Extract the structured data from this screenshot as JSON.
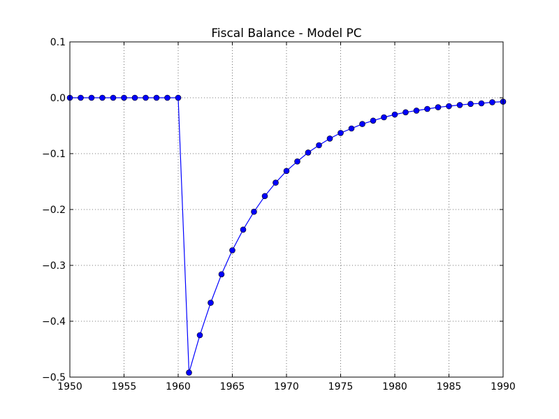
{
  "chart_data": {
    "type": "line",
    "title": "Fiscal Balance - Model PC",
    "xlabel": "",
    "ylabel": "",
    "xlim": [
      1950,
      1990
    ],
    "ylim": [
      -0.5,
      0.1
    ],
    "x_ticks": [
      1950,
      1955,
      1960,
      1965,
      1970,
      1975,
      1980,
      1985,
      1990
    ],
    "x_tick_labels": [
      "1950",
      "1955",
      "1960",
      "1965",
      "1970",
      "1975",
      "1980",
      "1985",
      "1990"
    ],
    "y_ticks": [
      0.1,
      0.0,
      -0.1,
      -0.2,
      -0.3,
      -0.4,
      -0.5
    ],
    "y_tick_labels": [
      "0.1",
      "0.0",
      "−0.1",
      "−0.2",
      "−0.3",
      "−0.4",
      "−0.5"
    ],
    "grid": true,
    "color": "#0000ff",
    "marker": "circle",
    "series": [
      {
        "x": [
          1950,
          1951,
          1952,
          1953,
          1954,
          1955,
          1956,
          1957,
          1958,
          1959,
          1960,
          1961,
          1962,
          1963,
          1964,
          1965,
          1966,
          1967,
          1968,
          1969,
          1970,
          1971,
          1972,
          1973,
          1974,
          1975,
          1976,
          1977,
          1978,
          1979,
          1980,
          1981,
          1982,
          1983,
          1984,
          1985,
          1986,
          1987,
          1988,
          1989,
          1990
        ],
        "values": [
          0,
          0,
          0,
          0,
          0,
          0,
          0,
          0,
          0,
          0,
          0,
          -0.492,
          -0.425,
          -0.367,
          -0.316,
          -0.273,
          -0.236,
          -0.204,
          -0.176,
          -0.152,
          -0.131,
          -0.114,
          -0.098,
          -0.085,
          -0.073,
          -0.063,
          -0.055,
          -0.047,
          -0.041,
          -0.035,
          -0.03,
          -0.026,
          -0.023,
          -0.02,
          -0.017,
          -0.015,
          -0.013,
          -0.011,
          -0.01,
          -0.008,
          -0.007
        ]
      }
    ]
  }
}
